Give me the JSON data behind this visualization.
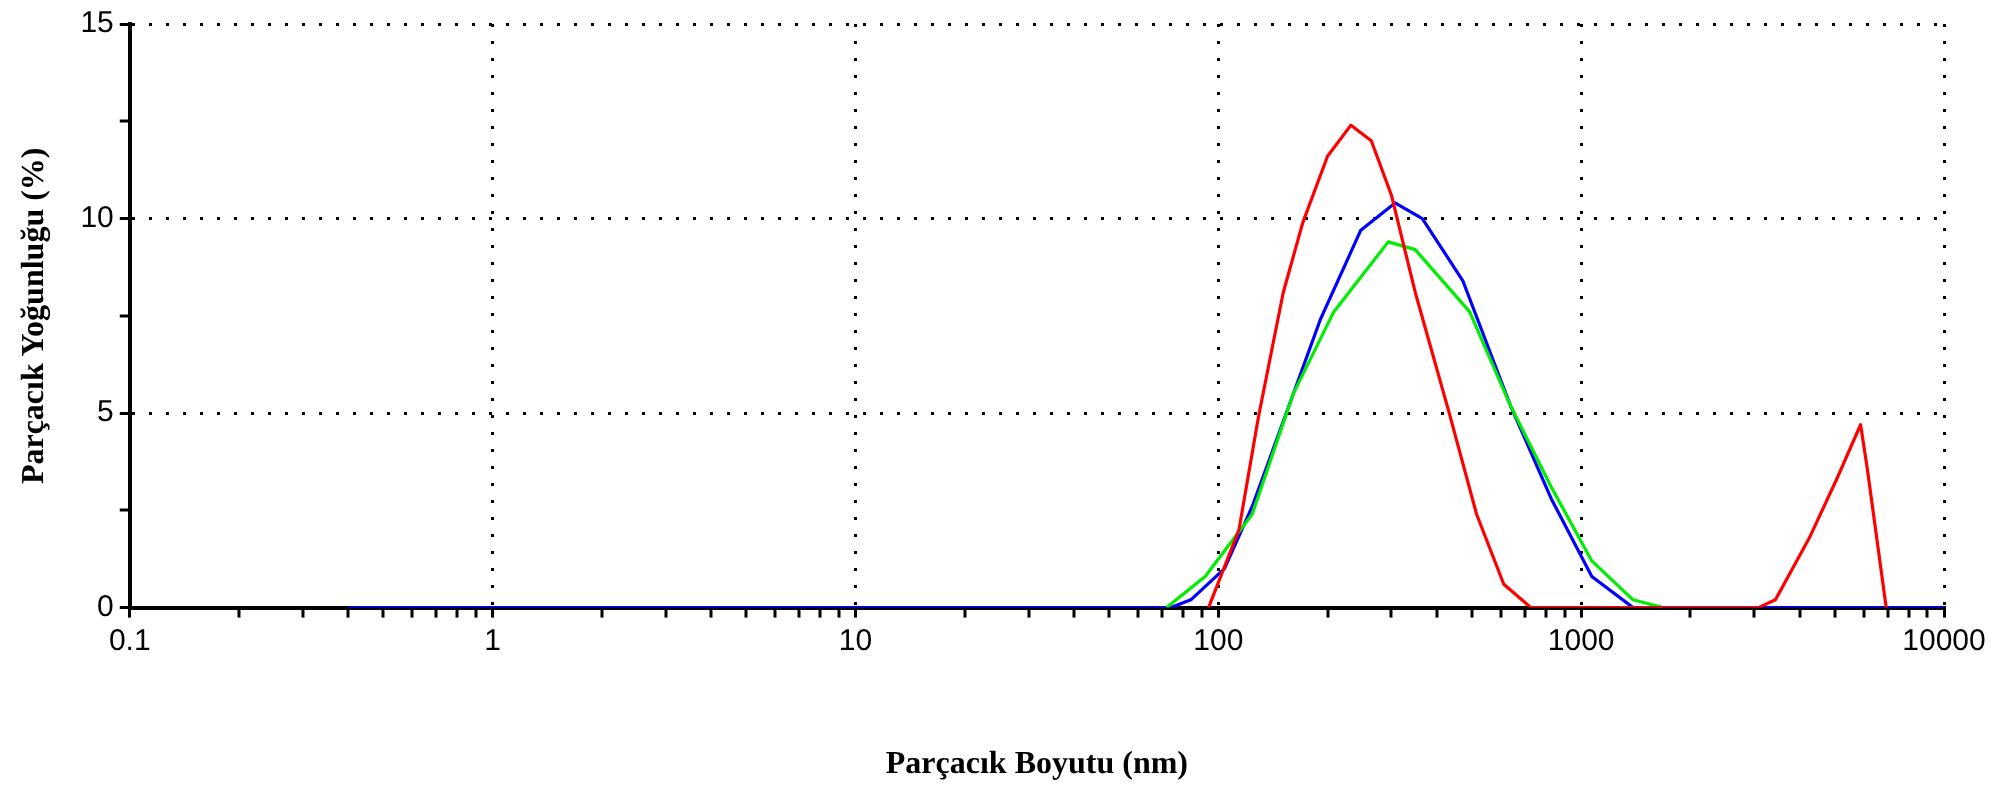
{
  "chart_data": {
    "type": "line",
    "xlabel": "Parçacık Boyutu (nm)",
    "ylabel": "Parçacık Yoğunluğu (%)",
    "log": "x",
    "grid": true,
    "legend": false,
    "marker": "none",
    "line_style": "solid",
    "xlim": [
      0.1,
      10000
    ],
    "ylim": [
      0,
      15
    ],
    "xticks": [
      0.1,
      {
        "value": 0.2,
        "label": null
      },
      {
        "value": 0.3,
        "label": null
      },
      {
        "value": 0.4,
        "label": null
      },
      {
        "value": 0.5,
        "label": null
      },
      {
        "value": 0.6,
        "label": null
      },
      {
        "value": 0.7,
        "label": null
      },
      {
        "value": 0.8,
        "label": null
      },
      {
        "value": 0.9,
        "label": null
      },
      1,
      {
        "value": 2,
        "label": null
      },
      {
        "value": 3,
        "label": null
      },
      {
        "value": 4,
        "label": null
      },
      {
        "value": 5,
        "label": null
      },
      {
        "value": 6,
        "label": null
      },
      {
        "value": 7,
        "label": null
      },
      {
        "value": 8,
        "label": null
      },
      {
        "value": 9,
        "label": null
      },
      10,
      {
        "value": 20,
        "label": null
      },
      {
        "value": 30,
        "label": null
      },
      {
        "value": 40,
        "label": null
      },
      {
        "value": 50,
        "label": null
      },
      {
        "value": 60,
        "label": null
      },
      {
        "value": 70,
        "label": null
      },
      {
        "value": 80,
        "label": null
      },
      {
        "value": 90,
        "label": null
      },
      100,
      {
        "value": 200,
        "label": null
      },
      {
        "value": 300,
        "label": null
      },
      {
        "value": 400,
        "label": null
      },
      {
        "value": 500,
        "label": null
      },
      {
        "value": 600,
        "label": null
      },
      {
        "value": 700,
        "label": null
      },
      {
        "value": 800,
        "label": null
      },
      {
        "value": 900,
        "label": null
      },
      1000,
      {
        "value": 2000,
        "label": null
      },
      {
        "value": 3000,
        "label": null
      },
      {
        "value": 4000,
        "label": null
      },
      {
        "value": 5000,
        "label": null
      },
      {
        "value": 6000,
        "label": null
      },
      {
        "value": 7000,
        "label": null
      },
      {
        "value": 8000,
        "label": null
      },
      {
        "value": 9000,
        "label": null
      },
      10000
    ],
    "yticks": [
      0,
      {
        "value": 2.5,
        "label": null
      },
      5,
      {
        "value": 7.5,
        "label": null
      },
      10,
      {
        "value": 12.5,
        "label": null
      },
      15
    ],
    "series": [
      {
        "color": "#ff0000",
        "x": [
          94,
          114,
          129,
          151,
          171,
          200,
          232,
          264,
          300,
          349,
          433,
          515,
          612,
          727,
          3080,
          3430,
          4260,
          5060,
          5890,
          6140,
          6930
        ],
        "values": [
          0,
          2.0,
          4.9,
          8.1,
          9.9,
          11.6,
          12.4,
          12.0,
          10.6,
          8.1,
          5.0,
          2.4,
          0.6,
          0,
          0,
          0.2,
          1.8,
          3.3,
          4.7,
          3.6,
          0
        ]
      },
      {
        "color": "#00ee00",
        "x": [
          72,
          92,
          124,
          161,
          208,
          294,
          349,
          493,
          638,
          827,
          1070,
          1390,
          1680
        ],
        "values": [
          0,
          0.8,
          2.4,
          5.5,
          7.6,
          9.4,
          9.2,
          7.6,
          5.2,
          3.1,
          1.2,
          0.2,
          0
        ]
      },
      {
        "color": "#0000ff",
        "x": [
          0.4,
          74,
          84,
          104,
          124,
          154,
          191,
          247,
          307,
          365,
          472,
          638,
          827,
          1070,
          1390,
          10000
        ],
        "values": [
          0,
          0,
          0.2,
          1.0,
          2.6,
          5.0,
          7.4,
          9.7,
          10.4,
          10.0,
          8.4,
          5.2,
          2.8,
          0.8,
          0,
          0
        ]
      }
    ]
  }
}
